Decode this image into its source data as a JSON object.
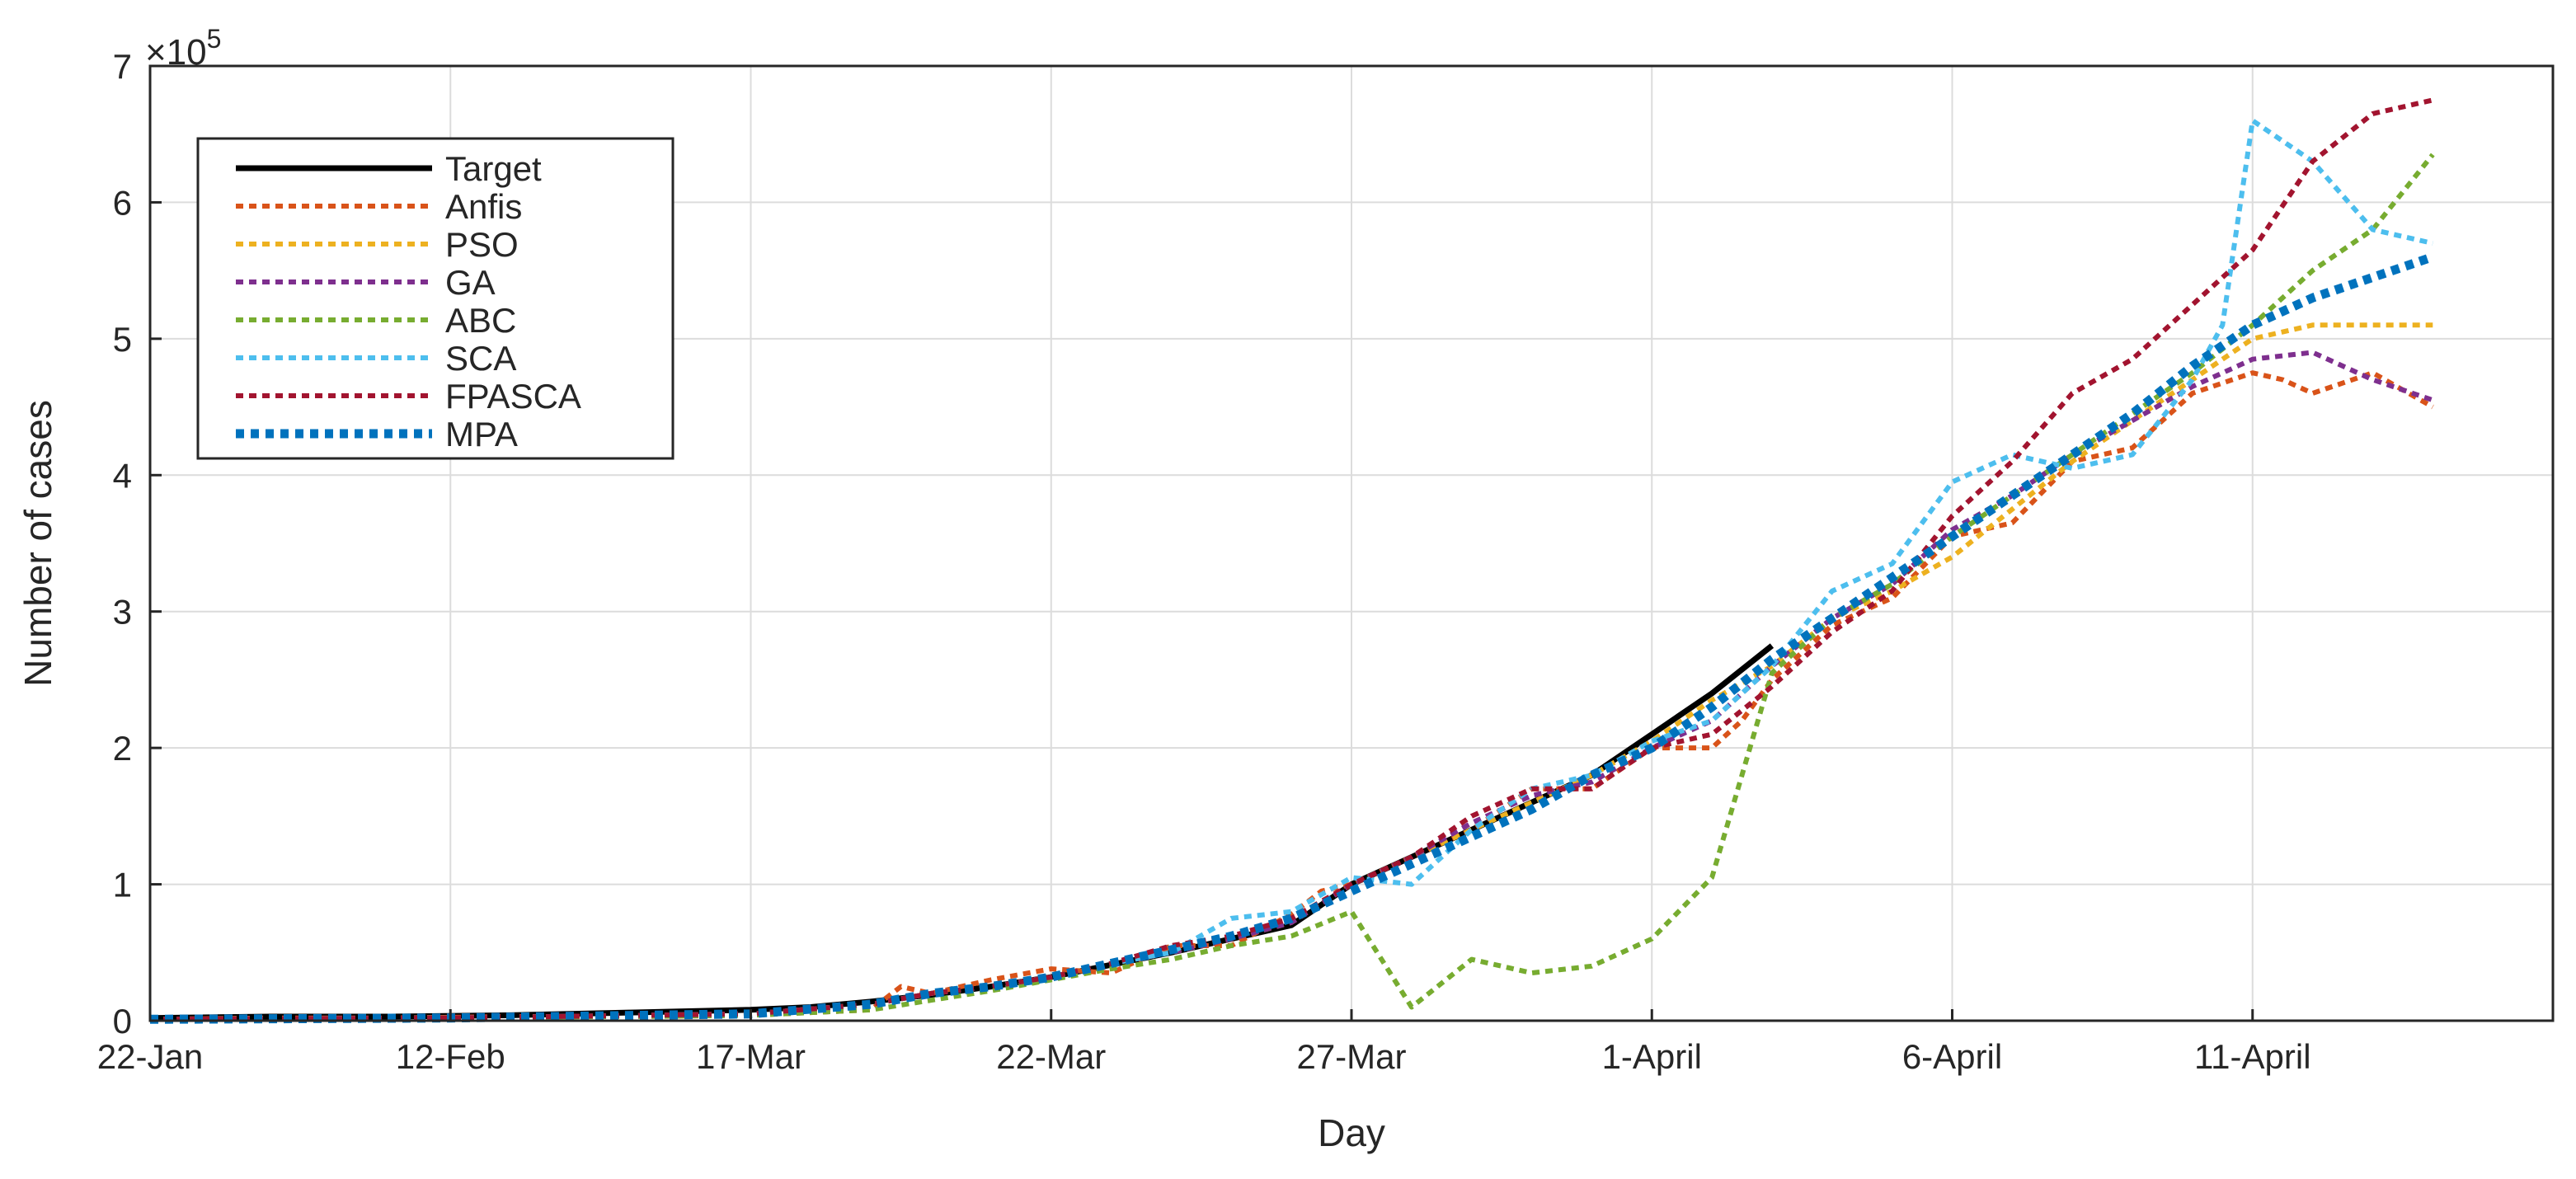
{
  "chart_data": {
    "type": "line",
    "title": "",
    "xlabel": "Day",
    "ylabel": "Number of cases",
    "y_exponent_label": "×10",
    "y_exponent_power": "5",
    "ylim": [
      0,
      7
    ],
    "yticks": [
      0,
      1,
      2,
      3,
      4,
      5,
      6,
      7
    ],
    "xlim": [
      0,
      40
    ],
    "xticks": [
      {
        "pos": 0,
        "label": "22-Jan"
      },
      {
        "pos": 5,
        "label": "12-Feb"
      },
      {
        "pos": 10,
        "label": "17-Mar"
      },
      {
        "pos": 15,
        "label": "22-Mar"
      },
      {
        "pos": 20,
        "label": "27-Mar"
      },
      {
        "pos": 25,
        "label": "1-April"
      },
      {
        "pos": 30,
        "label": "6-April"
      },
      {
        "pos": 35,
        "label": "11-April"
      }
    ],
    "grid": true,
    "legend_position": "top-left",
    "series": [
      {
        "name": "Target",
        "color": "#000000",
        "style": "solid",
        "x": [
          0,
          2,
          4,
          6,
          8,
          10,
          11,
          12,
          13,
          14,
          15,
          16,
          17,
          18,
          19,
          20,
          21,
          22,
          23,
          24,
          25,
          26,
          27
        ],
        "y": [
          0.02,
          0.03,
          0.03,
          0.04,
          0.06,
          0.08,
          0.1,
          0.14,
          0.19,
          0.25,
          0.32,
          0.41,
          0.5,
          0.6,
          0.7,
          1.0,
          1.2,
          1.4,
          1.6,
          1.8,
          2.1,
          2.4,
          2.75
        ]
      },
      {
        "name": "Anfis",
        "color": "#d95319",
        "style": "dashed",
        "x": [
          0,
          2,
          4,
          6,
          8,
          10,
          11,
          12,
          12.5,
          13,
          14,
          15,
          16,
          17,
          18,
          19,
          19.5,
          20,
          21,
          22,
          23,
          24,
          25,
          25.5,
          26,
          26.5,
          27,
          28,
          29,
          30,
          31,
          32,
          33,
          34,
          35,
          35.5,
          36,
          37,
          38
        ],
        "y": [
          0.01,
          0.02,
          0.02,
          0.03,
          0.03,
          0.04,
          0.06,
          0.08,
          0.25,
          0.2,
          0.3,
          0.38,
          0.35,
          0.55,
          0.55,
          0.78,
          0.95,
          1.0,
          1.2,
          1.4,
          1.7,
          1.7,
          2.0,
          2.0,
          2.0,
          2.2,
          2.5,
          2.9,
          3.1,
          3.55,
          3.65,
          4.1,
          4.2,
          4.6,
          4.75,
          4.7,
          4.6,
          4.75,
          4.5
        ]
      },
      {
        "name": "PSO",
        "color": "#edb120",
        "style": "dashed",
        "x": [
          0,
          5,
          10,
          12,
          13,
          14,
          15,
          16,
          17,
          18,
          19,
          20,
          21,
          22,
          23,
          24,
          25,
          26,
          27,
          28,
          29,
          30,
          31,
          32,
          33,
          34,
          35,
          36,
          37,
          38
        ],
        "y": [
          0.01,
          0.02,
          0.05,
          0.12,
          0.2,
          0.25,
          0.32,
          0.42,
          0.5,
          0.6,
          0.72,
          1.0,
          1.2,
          1.4,
          1.6,
          1.8,
          2.05,
          2.35,
          2.6,
          2.95,
          3.15,
          3.4,
          3.75,
          4.1,
          4.4,
          4.7,
          5.0,
          5.1,
          5.1,
          5.1
        ]
      },
      {
        "name": "GA",
        "color": "#7e2f8e",
        "style": "dashed",
        "x": [
          0,
          5,
          10,
          12,
          13,
          14,
          15,
          16,
          17,
          18,
          19,
          20,
          21,
          22,
          23,
          24,
          25,
          26,
          27,
          28,
          29,
          30,
          31,
          32,
          33,
          34,
          35,
          36,
          37,
          38
        ],
        "y": [
          0.01,
          0.02,
          0.05,
          0.12,
          0.2,
          0.25,
          0.32,
          0.42,
          0.5,
          0.6,
          0.72,
          1.0,
          1.2,
          1.45,
          1.65,
          1.75,
          2.0,
          2.2,
          2.6,
          2.95,
          3.2,
          3.6,
          3.85,
          4.15,
          4.4,
          4.65,
          4.85,
          4.9,
          4.7,
          4.55
        ]
      },
      {
        "name": "ABC",
        "color": "#77ac30",
        "style": "dashed",
        "x": [
          0,
          5,
          10,
          12,
          13,
          14,
          15,
          16,
          17,
          18,
          19,
          20,
          21,
          22,
          23,
          24,
          25,
          26,
          27,
          28,
          29,
          30,
          31,
          32,
          33,
          34,
          35,
          36,
          37,
          38
        ],
        "y": [
          0.01,
          0.02,
          0.04,
          0.08,
          0.15,
          0.22,
          0.3,
          0.38,
          0.45,
          0.55,
          0.62,
          0.8,
          0.1,
          0.45,
          0.35,
          0.4,
          0.6,
          1.05,
          2.55,
          2.95,
          3.2,
          3.55,
          3.85,
          4.15,
          4.45,
          4.75,
          5.1,
          5.5,
          5.8,
          6.35
        ]
      },
      {
        "name": "SCA",
        "color": "#4dbeee",
        "style": "dashed",
        "x": [
          0,
          5,
          10,
          12,
          13,
          14,
          15,
          16,
          17,
          18,
          19,
          20,
          21,
          22,
          23,
          24,
          25,
          26,
          27,
          28,
          29,
          30,
          31,
          32,
          33,
          34,
          34.5,
          35,
          36,
          37,
          38
        ],
        "y": [
          0.01,
          0.02,
          0.05,
          0.12,
          0.2,
          0.25,
          0.32,
          0.42,
          0.5,
          0.75,
          0.8,
          1.05,
          1.0,
          1.4,
          1.7,
          1.8,
          2.05,
          2.2,
          2.6,
          3.15,
          3.35,
          3.95,
          4.15,
          4.05,
          4.15,
          4.7,
          5.1,
          6.6,
          6.3,
          5.8,
          5.7
        ]
      },
      {
        "name": "FPASCA",
        "color": "#a2142f",
        "style": "dashed",
        "x": [
          0,
          5,
          10,
          12,
          13,
          14,
          15,
          16,
          17,
          18,
          19,
          20,
          21,
          22,
          23,
          24,
          25,
          26,
          27,
          28,
          29,
          30,
          31,
          32,
          33,
          34,
          35,
          36,
          37,
          38
        ],
        "y": [
          0.01,
          0.02,
          0.05,
          0.12,
          0.2,
          0.25,
          0.32,
          0.42,
          0.55,
          0.62,
          0.75,
          1.0,
          1.2,
          1.5,
          1.7,
          1.7,
          2.0,
          2.1,
          2.45,
          2.85,
          3.15,
          3.7,
          4.1,
          4.6,
          4.85,
          5.25,
          5.65,
          6.3,
          6.65,
          6.75
        ]
      },
      {
        "name": "MPA",
        "color": "#0072bd",
        "style": "dotted-thick",
        "x": [
          0,
          5,
          10,
          12,
          13,
          14,
          15,
          16,
          17,
          18,
          19,
          20,
          21,
          22,
          23,
          24,
          25,
          26,
          27,
          28,
          29,
          30,
          31,
          32,
          33,
          34,
          35,
          36,
          37,
          38
        ],
        "y": [
          0.01,
          0.02,
          0.05,
          0.12,
          0.2,
          0.25,
          0.32,
          0.42,
          0.52,
          0.62,
          0.75,
          0.95,
          1.15,
          1.35,
          1.55,
          1.8,
          2.0,
          2.3,
          2.65,
          2.95,
          3.25,
          3.55,
          3.85,
          4.15,
          4.45,
          4.8,
          5.1,
          5.3,
          5.45,
          5.6
        ]
      }
    ]
  }
}
